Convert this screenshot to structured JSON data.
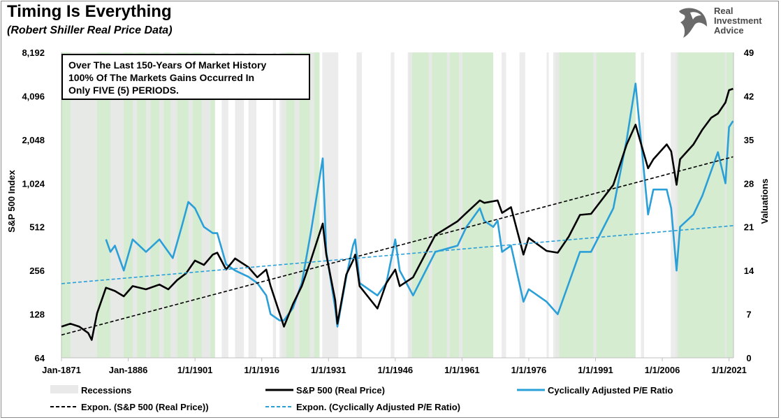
{
  "header": {
    "title": "Timing Is Everything",
    "subtitle": "(Robert Shiller Real Price Data)"
  },
  "logo": {
    "line1": "Real",
    "line2": "Investment",
    "line3": "Advice"
  },
  "annotation": {
    "line1": "Over The Last 150-Years Of Market History",
    "line2": "100% Of The Markets Gains Occurred In",
    "line3": "Only FIVE (5) PERIODS."
  },
  "colors": {
    "sp500": "#000000",
    "cape": "#2a9fd8",
    "trend_sp500": "#000000",
    "trend_cape": "#2a9fd8",
    "bull_period": "#d5ecd0",
    "recession": "#e9e9e9"
  },
  "chart_data": {
    "type": "line",
    "title": "Timing Is Everything",
    "subtitle": "(Robert Shiller Real Price Data)",
    "xlabel": "",
    "ylabel": "S&P 500 Index",
    "y2label": "Valuations",
    "x_range": [
      1871,
      2022
    ],
    "x_tick_labels": [
      "Jan-1871",
      "Jan-1886",
      "1/1/1901",
      "1/1/1916",
      "1/1/1931",
      "1/1/1946",
      "1/1/1961",
      "1/1/1976",
      "1/1/1991",
      "1/1/2006",
      "1/1/2021"
    ],
    "x_tick_years": [
      1871,
      1886,
      1901,
      1916,
      1931,
      1946,
      1961,
      1976,
      1991,
      2006,
      2021
    ],
    "y_axis_left": {
      "scale": "log2",
      "range": [
        64,
        8192
      ],
      "tick_labels": [
        "64",
        "128",
        "256",
        "512",
        "1,024",
        "2,048",
        "4,096",
        "8,192"
      ],
      "tick_values": [
        64,
        128,
        256,
        512,
        1024,
        2048,
        4096,
        8192
      ]
    },
    "y_axis_right": {
      "scale": "linear",
      "range": [
        0,
        49
      ],
      "tick_labels": [
        "0",
        "7",
        "14",
        "21",
        "28",
        "35",
        "42",
        "49"
      ],
      "tick_values": [
        0,
        7,
        14,
        21,
        28,
        35,
        42,
        49
      ]
    },
    "bull_periods": [
      [
        1871,
        1905.5
      ],
      [
        1920.5,
        1929
      ],
      [
        1949,
        1968
      ],
      [
        1982,
        2000
      ],
      [
        2009,
        2022
      ]
    ],
    "recessions": [
      [
        1873,
        1879
      ],
      [
        1882,
        1885
      ],
      [
        1887,
        1888
      ],
      [
        1890,
        1891
      ],
      [
        1893,
        1894
      ],
      [
        1895.5,
        1897
      ],
      [
        1899.5,
        1900.5
      ],
      [
        1902.5,
        1904.5
      ],
      [
        1907,
        1908.5
      ],
      [
        1910,
        1912
      ],
      [
        1913,
        1914.8
      ],
      [
        1918.5,
        1919.2
      ],
      [
        1920,
        1921.5
      ],
      [
        1923.3,
        1924.5
      ],
      [
        1926.8,
        1927.8
      ],
      [
        1929.6,
        1933.2
      ],
      [
        1937.3,
        1938.5
      ],
      [
        1945,
        1945.8
      ],
      [
        1948.8,
        1949.8
      ],
      [
        1953.5,
        1954.3
      ],
      [
        1957.6,
        1958.3
      ],
      [
        1960.3,
        1961.1
      ],
      [
        1969.9,
        1970.9
      ],
      [
        1973.9,
        1975.2
      ],
      [
        1980,
        1980.5
      ],
      [
        1981.5,
        1982.9
      ],
      [
        1990.5,
        1991.2
      ],
      [
        2001.2,
        2001.9
      ],
      [
        2007.9,
        2009.5
      ],
      [
        2020.1,
        2020.4
      ]
    ],
    "legend": [
      {
        "label": "Recessions",
        "style": "band"
      },
      {
        "label": "S&P 500 (Real Price)",
        "style": "solid-black"
      },
      {
        "label": "Cyclically Adjusted P/E Ratio",
        "style": "solid-blue"
      },
      {
        "label": "Expon. (S&P 500 (Real Price))",
        "style": "dashed-black"
      },
      {
        "label": "Expon. (Cyclically Adjusted P/E Ratio)",
        "style": "dashed-blue"
      }
    ],
    "legend_placement": "bottom",
    "series": [
      {
        "name": "S&P 500 (Real Price)",
        "axis": "left",
        "x": [
          1871,
          1873,
          1875,
          1877,
          1877.8,
          1879,
          1881,
          1883,
          1885,
          1887,
          1890,
          1893,
          1895,
          1897,
          1899,
          1901,
          1903,
          1905,
          1906,
          1908,
          1910,
          1913,
          1915,
          1917,
          1918,
          1920,
          1921,
          1923,
          1925,
          1927,
          1929.7,
          1930.5,
          1932.5,
          1933,
          1935,
          1936.5,
          1937,
          1938,
          1942,
          1944,
          1946,
          1947,
          1950,
          1955,
          1960,
          1962,
          1965,
          1966,
          1968,
          1969,
          1970,
          1972,
          1974.8,
          1976,
          1980,
          1982.5,
          1985,
          1987.5,
          1990,
          1995,
          1998,
          2000,
          2002.8,
          2004,
          2007,
          2008,
          2009.2,
          2010,
          2013,
          2015,
          2017,
          2018.5,
          2020.2,
          2021,
          2021.9
        ],
        "y": [
          105,
          110,
          105,
          95,
          85,
          130,
          195,
          185,
          170,
          200,
          190,
          205,
          190,
          220,
          245,
          300,
          280,
          330,
          340,
          260,
          310,
          270,
          230,
          260,
          200,
          130,
          105,
          150,
          200,
          300,
          540,
          330,
          160,
          110,
          240,
          300,
          330,
          200,
          140,
          210,
          260,
          200,
          230,
          450,
          560,
          640,
          780,
          750,
          770,
          780,
          640,
          700,
          330,
          430,
          350,
          340,
          440,
          620,
          630,
          1000,
          1900,
          2600,
          1300,
          1500,
          1900,
          1700,
          1000,
          1500,
          1900,
          2400,
          2900,
          3100,
          3700,
          4500,
          4600
        ]
      },
      {
        "name": "Cyclically Adjusted P/E Ratio",
        "axis": "right",
        "x": [
          1881,
          1882,
          1883,
          1885,
          1887,
          1890,
          1893,
          1896,
          1898,
          1899.5,
          1901,
          1903,
          1905,
          1906,
          1908,
          1910,
          1913,
          1915,
          1917,
          1918,
          1920,
          1921,
          1923,
          1925,
          1927,
          1929.7,
          1930.5,
          1932.5,
          1933,
          1935,
          1936.5,
          1937,
          1938,
          1942,
          1944,
          1946,
          1947,
          1950,
          1955,
          1960,
          1962,
          1965,
          1966,
          1968,
          1969,
          1970,
          1972,
          1974.8,
          1976,
          1980,
          1982.5,
          1985,
          1987.5,
          1990,
          1995,
          1998,
          2000,
          2002.8,
          2004,
          2007,
          2008,
          2009.2,
          2010,
          2013,
          2015,
          2017,
          2018.5,
          2020.2,
          2021,
          2021.9
        ],
        "y": [
          19,
          17,
          18,
          14,
          19,
          17,
          19,
          16,
          21,
          25,
          24,
          21,
          20,
          20,
          15,
          14,
          13,
          12,
          10,
          7,
          6,
          6,
          8,
          12,
          20,
          32,
          17,
          8,
          5,
          13,
          18,
          19,
          12,
          10,
          12,
          19,
          14,
          10,
          17,
          18,
          21,
          24,
          22,
          21,
          22,
          17,
          18,
          9,
          11,
          9,
          7,
          12,
          17,
          17,
          24,
          35,
          44,
          23,
          27,
          27,
          24,
          14,
          21,
          23,
          26,
          30,
          33,
          28,
          37,
          38
        ]
      },
      {
        "name": "Expon. (S&P 500 (Real Price))",
        "axis": "left",
        "trend": true,
        "x": [
          1871,
          2021.9
        ],
        "y": [
          92,
          1560
        ]
      },
      {
        "name": "Expon. (Cyclically Adjusted P/E Ratio)",
        "axis": "right",
        "trend": true,
        "x": [
          1871,
          2021.9
        ],
        "y": [
          11.9,
          21.2
        ]
      }
    ]
  }
}
